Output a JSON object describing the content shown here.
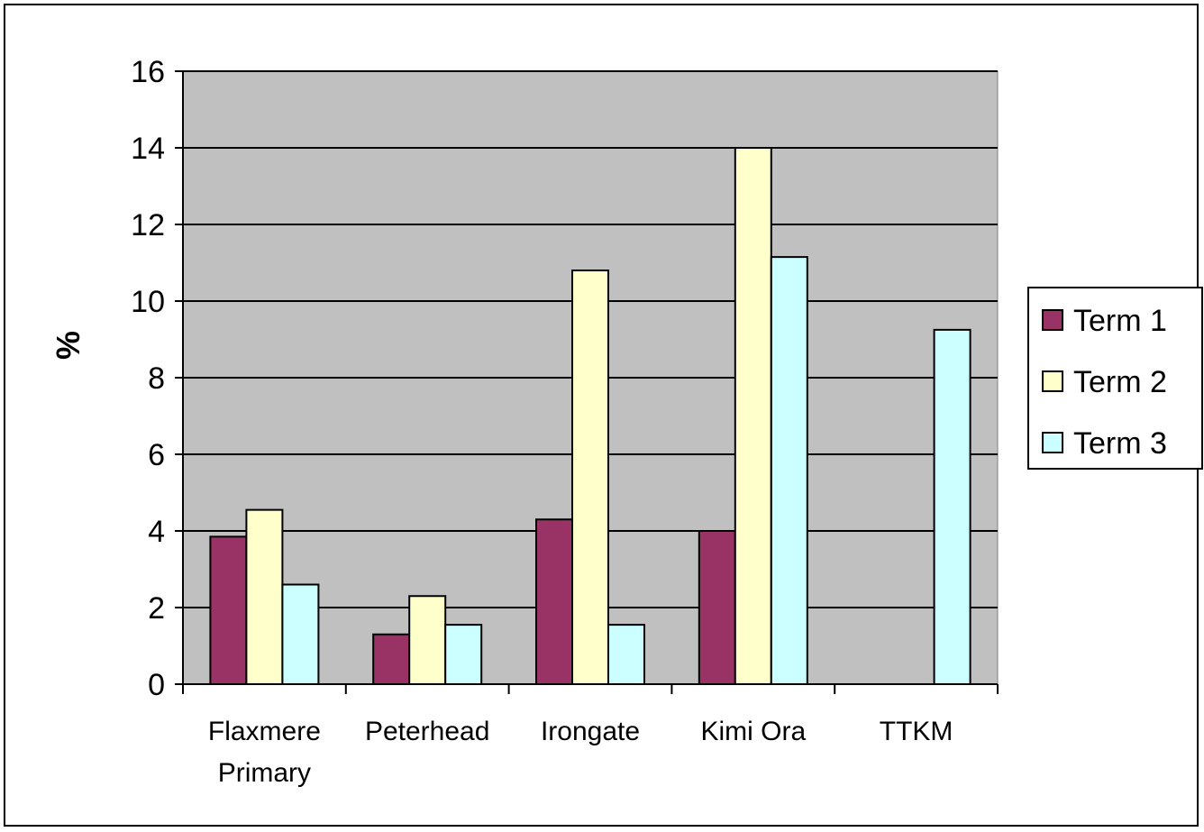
{
  "chart_data": {
    "type": "bar",
    "title": "",
    "xlabel": "",
    "ylabel": "%",
    "ylim": [
      0,
      16
    ],
    "yticks": [
      0,
      2,
      4,
      6,
      8,
      10,
      12,
      14,
      16
    ],
    "grid": true,
    "legend_position": "right",
    "categories": [
      [
        "Flaxmere",
        "Primary"
      ],
      [
        "Peterhead"
      ],
      [
        "Irongate"
      ],
      [
        "Kimi Ora"
      ],
      [
        "TTKM"
      ]
    ],
    "series": [
      {
        "name": "Term 1",
        "color": "#993366",
        "values": [
          3.85,
          1.3,
          4.3,
          4.0,
          null
        ]
      },
      {
        "name": "Term 2",
        "color": "#FFFFCC",
        "values": [
          4.55,
          2.3,
          10.8,
          14.0,
          null
        ]
      },
      {
        "name": "Term 3",
        "color": "#CCFFFF",
        "values": [
          2.6,
          1.55,
          1.55,
          11.15,
          9.25
        ]
      }
    ],
    "plot_background": "#C0C0C0"
  }
}
